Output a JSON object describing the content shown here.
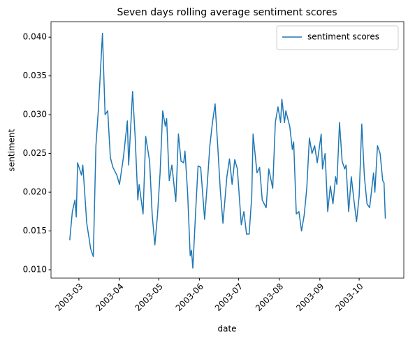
{
  "chart_data": {
    "type": "line",
    "title": "Seven days rolling average sentiment scores",
    "x_label": "date",
    "y_label": "sentiment",
    "x": [
      -7,
      -5,
      -3,
      -2,
      -1,
      2,
      3,
      6,
      9,
      11,
      13,
      15,
      18,
      20,
      22,
      24,
      26,
      29,
      31,
      34,
      37,
      38,
      41,
      43,
      45,
      46,
      49,
      51,
      54,
      56,
      58,
      60,
      62,
      64,
      66,
      67,
      69,
      71,
      74,
      76,
      78,
      80,
      81,
      83,
      85,
      86,
      87,
      89,
      91,
      93,
      96,
      98,
      100,
      102,
      104,
      106,
      108,
      110,
      113,
      115,
      117,
      119,
      121,
      124,
      126,
      128,
      130,
      132,
      133,
      136,
      138,
      140,
      143,
      145,
      148,
      150,
      152,
      154,
      155,
      157,
      158,
      161,
      163,
      164,
      166,
      168,
      170,
      172,
      174,
      176,
      178,
      180,
      182,
      185,
      186,
      188,
      190,
      192,
      194,
      196,
      197,
      199,
      201,
      203,
      204,
      206,
      208,
      210,
      212,
      214,
      216,
      218,
      220,
      222,
      225,
      226,
      228,
      230,
      232,
      233,
      234
    ],
    "series": [
      {
        "name": "sentiment scores",
        "color": "#1f77b4",
        "values": [
          0.0138,
          0.0175,
          0.019,
          0.0168,
          0.0238,
          0.0222,
          0.0235,
          0.016,
          0.0127,
          0.0117,
          0.026,
          0.031,
          0.0405,
          0.03,
          0.0305,
          0.0245,
          0.0232,
          0.0222,
          0.021,
          0.0245,
          0.0292,
          0.0235,
          0.033,
          0.027,
          0.019,
          0.021,
          0.0172,
          0.0272,
          0.024,
          0.017,
          0.0132,
          0.017,
          0.0225,
          0.0305,
          0.0285,
          0.0295,
          0.0215,
          0.0235,
          0.0188,
          0.0275,
          0.024,
          0.0238,
          0.0253,
          0.02,
          0.0118,
          0.0125,
          0.0102,
          0.017,
          0.0234,
          0.0232,
          0.0165,
          0.021,
          0.026,
          0.029,
          0.0314,
          0.026,
          0.0202,
          0.016,
          0.022,
          0.0243,
          0.021,
          0.0242,
          0.023,
          0.0158,
          0.0175,
          0.0146,
          0.0146,
          0.0195,
          0.0275,
          0.0225,
          0.0232,
          0.019,
          0.018,
          0.023,
          0.0205,
          0.029,
          0.031,
          0.029,
          0.032,
          0.029,
          0.0305,
          0.0285,
          0.0255,
          0.0265,
          0.0172,
          0.0175,
          0.015,
          0.017,
          0.0205,
          0.027,
          0.025,
          0.026,
          0.0238,
          0.0275,
          0.023,
          0.025,
          0.0175,
          0.0208,
          0.0185,
          0.022,
          0.021,
          0.029,
          0.024,
          0.023,
          0.0235,
          0.0175,
          0.022,
          0.019,
          0.0162,
          0.0195,
          0.0288,
          0.022,
          0.0185,
          0.018,
          0.0225,
          0.02,
          0.026,
          0.025,
          0.0215,
          0.0212,
          0.0166
        ]
      }
    ],
    "xlim": [
      -21.3,
      248.1
    ],
    "xticks": [
      {
        "value": 0,
        "label": "2003-03"
      },
      {
        "value": 31,
        "label": "2003-04"
      },
      {
        "value": 61,
        "label": "2003-05"
      },
      {
        "value": 92,
        "label": "2003-06"
      },
      {
        "value": 122,
        "label": "2003-07"
      },
      {
        "value": 153,
        "label": "2003-08"
      },
      {
        "value": 184,
        "label": "2003-09"
      },
      {
        "value": 214,
        "label": "2003-10"
      }
    ],
    "ylim": [
      0.00892,
      0.042
    ],
    "yticks": [
      {
        "value": 0.01,
        "label": "0.010"
      },
      0.015,
      {
        "value": 0.02,
        "label": "0.020"
      },
      0.025,
      {
        "value": 0.03,
        "label": "0.030"
      },
      0.035,
      {
        "value": 0.04,
        "label": "0.040"
      }
    ],
    "legend": "upper right",
    "grid": false
  }
}
